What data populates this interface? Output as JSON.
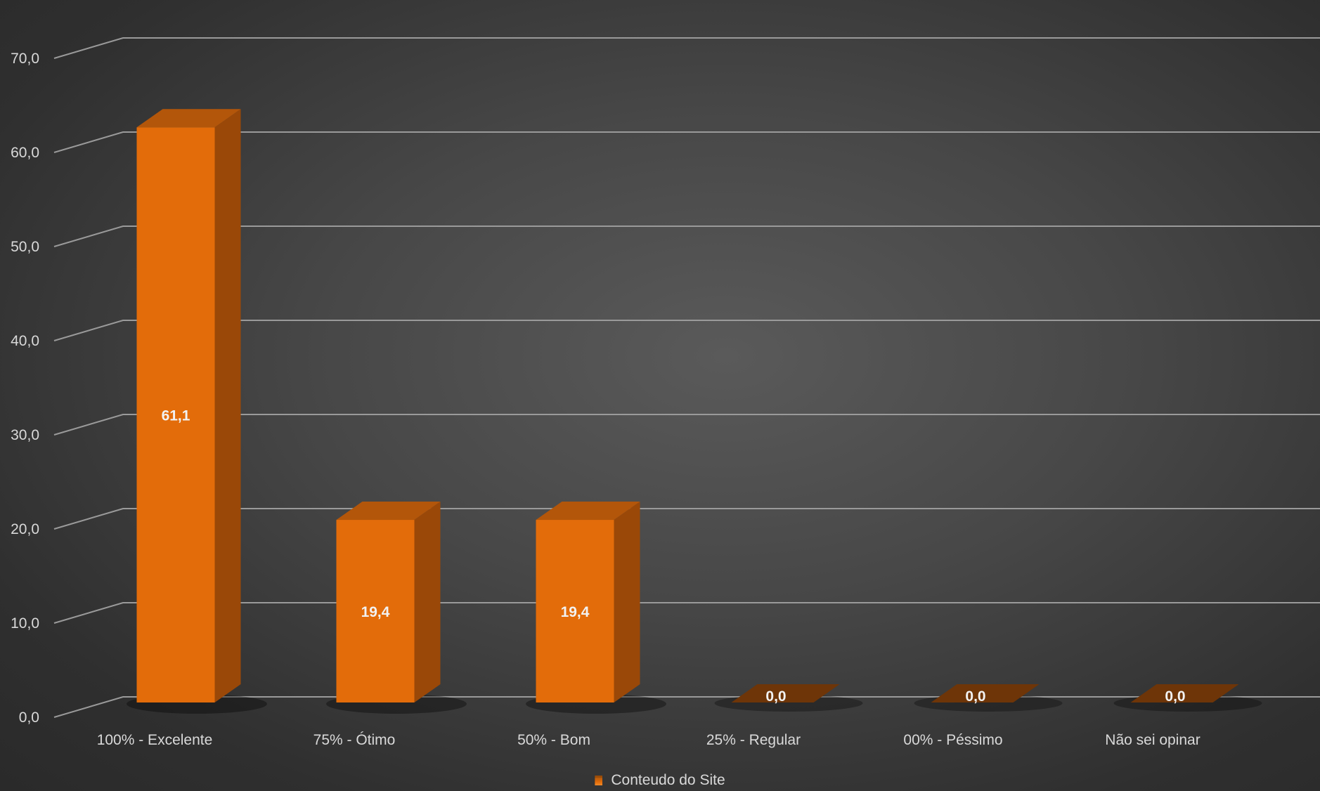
{
  "chart_data": {
    "type": "bar",
    "categories": [
      "100% - Excelente",
      "75% - Ótimo",
      "50% - Bom",
      "25% - Regular",
      "00% - Péssimo",
      "Não sei opinar"
    ],
    "series": [
      {
        "name": "Conteudo do Site",
        "values": [
          61.1,
          19.4,
          19.4,
          0.0,
          0.0,
          0.0
        ],
        "labels": [
          "61,1",
          "19,4",
          "19,4",
          "0,0",
          "0,0",
          "0,0"
        ]
      }
    ],
    "yticks": [
      "0,0",
      "10,0",
      "20,0",
      "30,0",
      "40,0",
      "50,0",
      "60,0",
      "70,0"
    ],
    "ylim": [
      0,
      70
    ],
    "grid": true,
    "legend_position": "bottom",
    "style": "3d-column",
    "colors": {
      "bar_front": "#e36c0a",
      "bar_side": "#9a4808",
      "bar_top": "#b3560a",
      "zero_bar": "#6e3508",
      "text": "#d9d9d9",
      "grid": "#9a9a9a"
    }
  }
}
